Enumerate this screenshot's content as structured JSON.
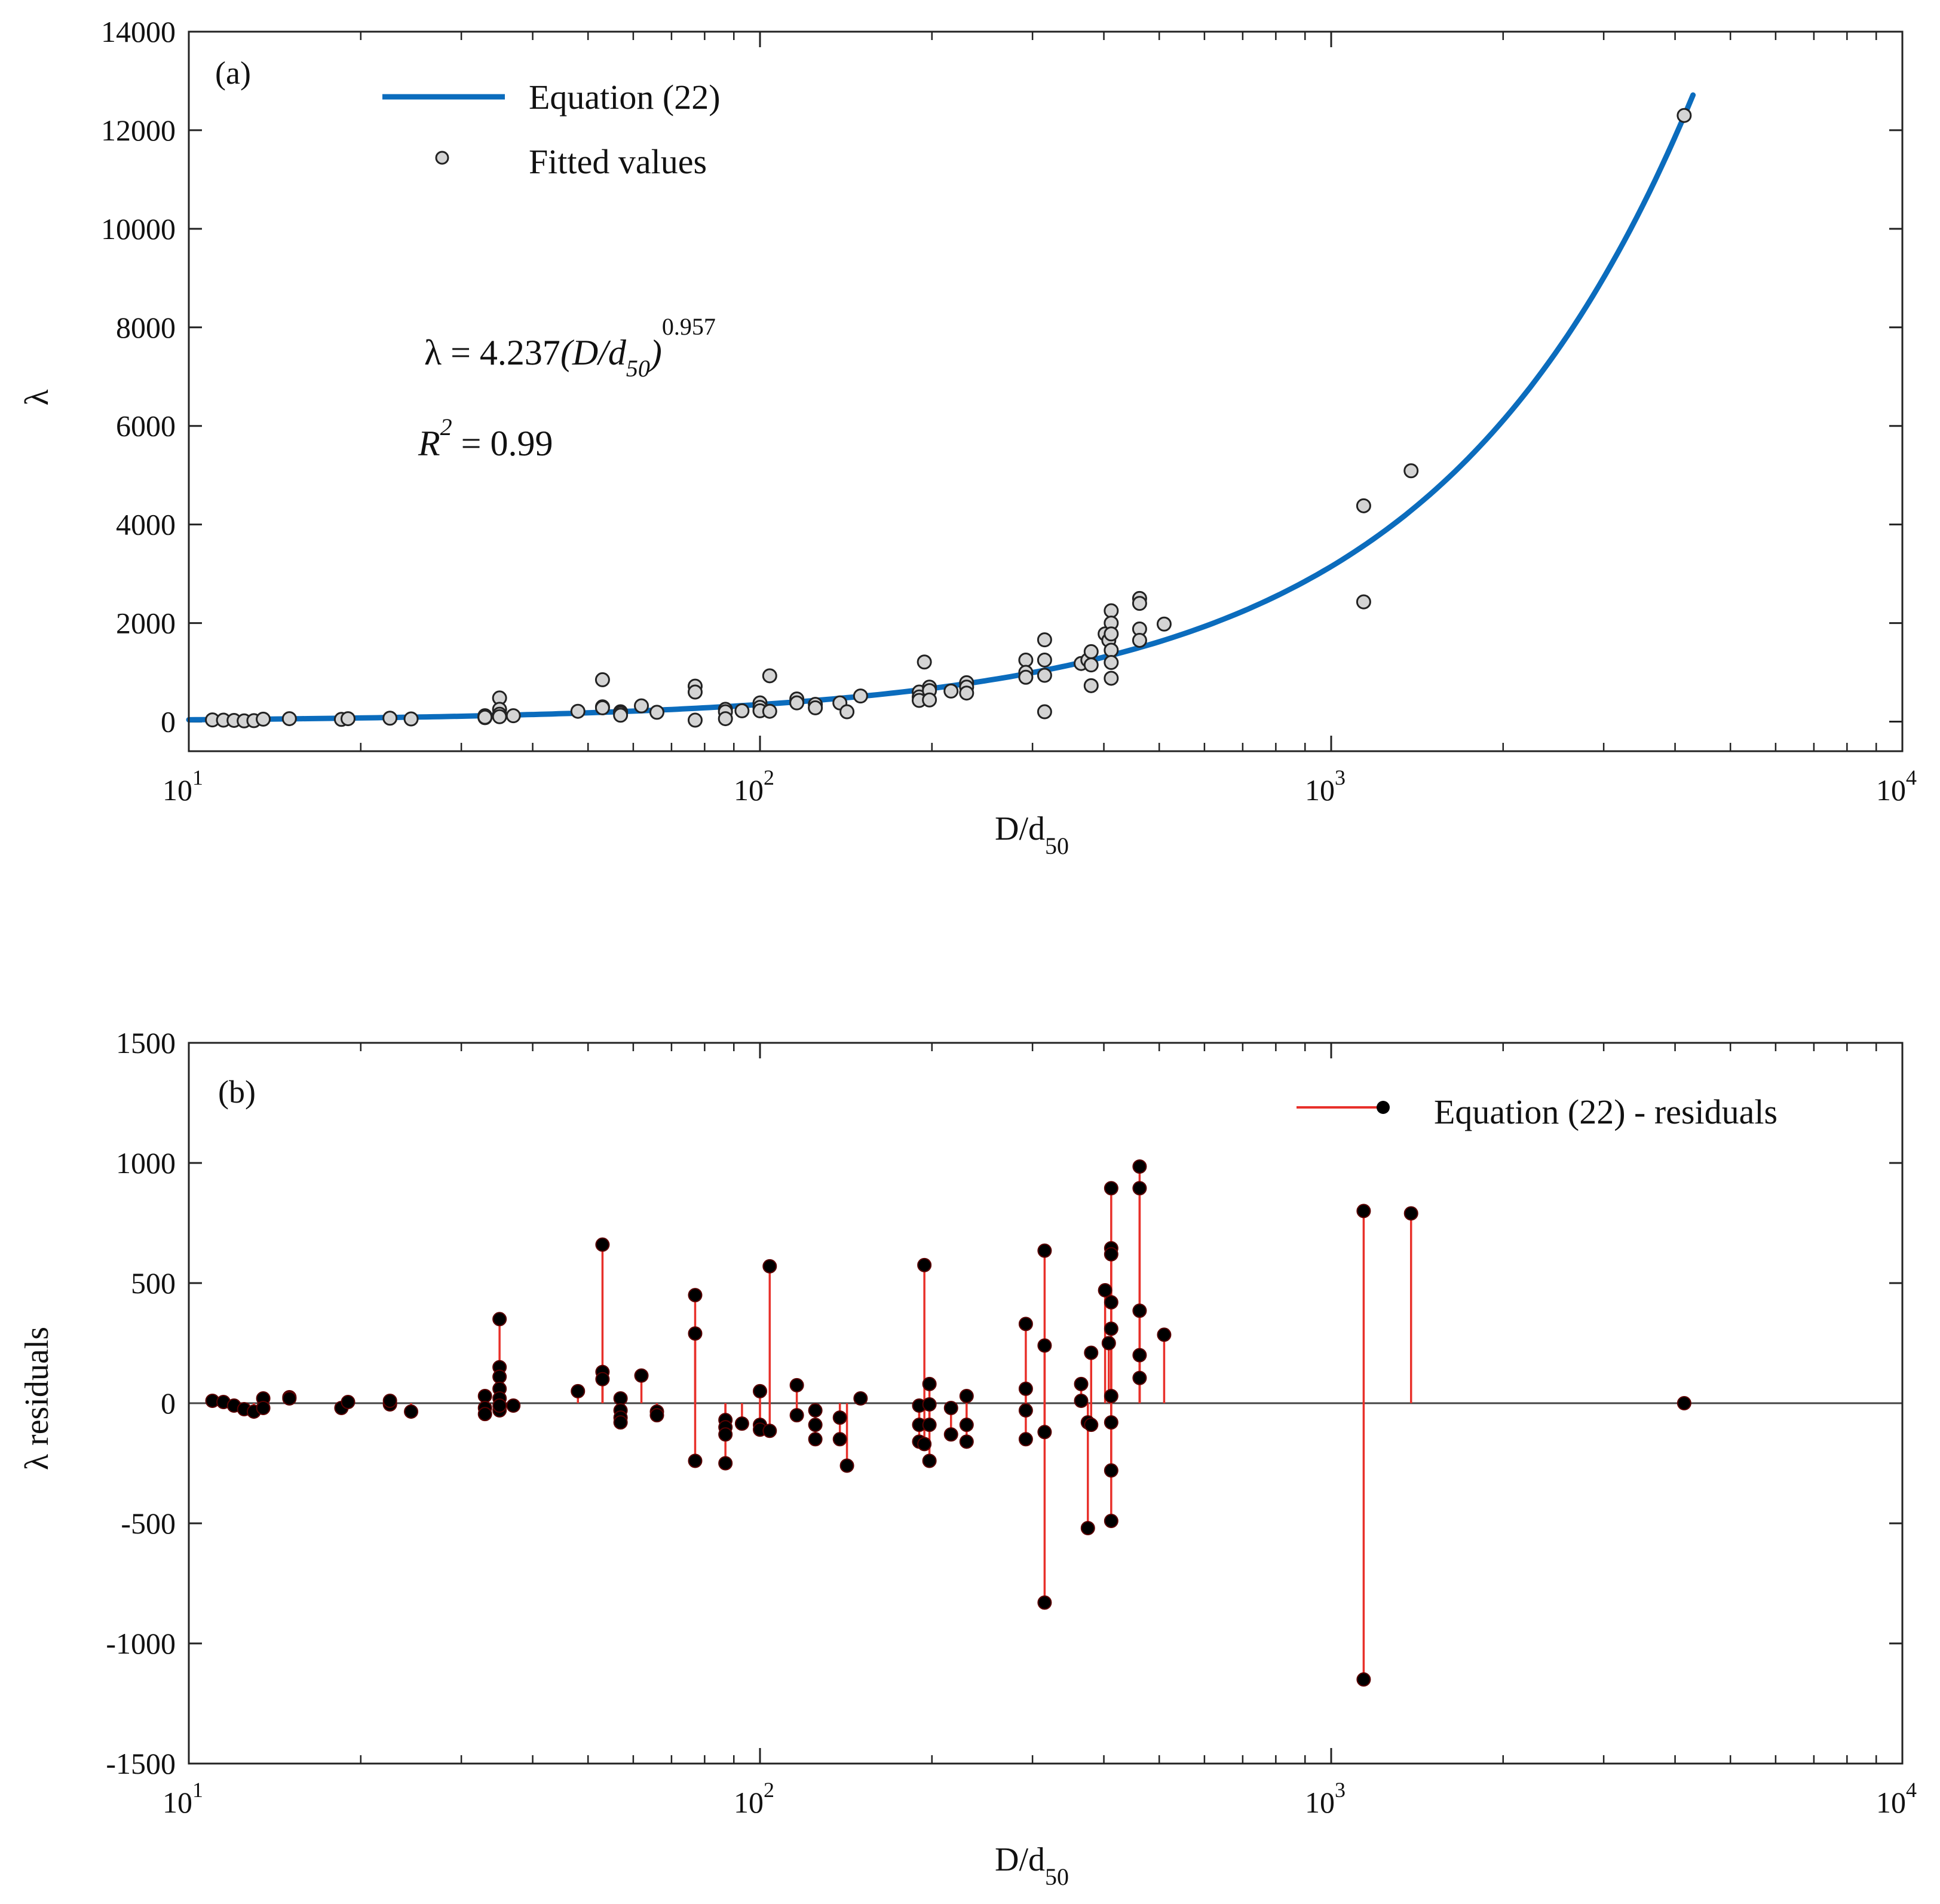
{
  "chart_data": [
    {
      "id": "a",
      "type": "scatter",
      "panel_label": "(a)",
      "x_scale": "log",
      "xlim": [
        10,
        10000
      ],
      "ylim": [
        -600,
        14000
      ],
      "yticks": [
        0,
        2000,
        4000,
        6000,
        8000,
        10000,
        12000,
        14000
      ],
      "ylabel": "λ",
      "xlabel": {
        "main": "D/d",
        "sub": "50"
      },
      "legend": {
        "line": "Equation (22)",
        "points": "Fitted values"
      },
      "annotation": {
        "eq_prefix": "λ = 4.237",
        "eq_var": "(D/d",
        "eq_sub": "50",
        "eq_close": ")",
        "eq_exp": "0.957",
        "r2_R": "R",
        "r2_sup": "2",
        "r2_val": " = 0.99"
      },
      "colors": {
        "line": "#0b6cbd",
        "points_fill": "#d4d4d4",
        "points_edge": "#222222"
      },
      "series": [
        {
          "name": "Equation (22)",
          "kind": "line",
          "coef": 4.237,
          "exp": 0.957,
          "x_range": [
            10,
            4300
          ]
        },
        {
          "name": "Fitted values",
          "kind": "points",
          "points": [
            [
              11,
              35
            ],
            [
              11.5,
              30
            ],
            [
              12,
              25
            ],
            [
              12.5,
              15
            ],
            [
              13,
              20
            ],
            [
              13.5,
              50
            ],
            [
              15,
              60
            ],
            [
              18.5,
              45
            ],
            [
              19,
              60
            ],
            [
              22.5,
              70
            ],
            [
              24.5,
              55
            ],
            [
              33,
              120
            ],
            [
              33,
              80
            ],
            [
              33,
              90
            ],
            [
              35,
              480
            ],
            [
              35,
              250
            ],
            [
              35,
              150
            ],
            [
              35,
              100
            ],
            [
              37,
              120
            ],
            [
              48,
              210
            ],
            [
              53,
              850
            ],
            [
              53,
              300
            ],
            [
              53,
              280
            ],
            [
              57,
              200
            ],
            [
              57,
              170
            ],
            [
              57,
              130
            ],
            [
              62,
              320
            ],
            [
              66,
              190
            ],
            [
              77,
              720
            ],
            [
              77,
              600
            ],
            [
              77,
              30
            ],
            [
              87,
              250
            ],
            [
              87,
              200
            ],
            [
              87,
              60
            ],
            [
              93,
              220
            ],
            [
              100,
              380
            ],
            [
              100,
              290
            ],
            [
              100,
              220
            ],
            [
              104,
              930
            ],
            [
              104,
              210
            ],
            [
              116,
              460
            ],
            [
              116,
              380
            ],
            [
              125,
              350
            ],
            [
              125,
              280
            ],
            [
              138,
              380
            ],
            [
              142,
              200
            ],
            [
              150,
              520
            ],
            [
              190,
              600
            ],
            [
              190,
              500
            ],
            [
              190,
              430
            ],
            [
              194,
              1210
            ],
            [
              198,
              700
            ],
            [
              198,
              630
            ],
            [
              198,
              440
            ],
            [
              216,
              620
            ],
            [
              230,
              790
            ],
            [
              230,
              700
            ],
            [
              230,
              580
            ],
            [
              292,
              1250
            ],
            [
              292,
              1000
            ],
            [
              292,
              900
            ],
            [
              315,
              1660
            ],
            [
              315,
              1250
            ],
            [
              315,
              940
            ],
            [
              315,
              200
            ],
            [
              365,
              1180
            ],
            [
              375,
              1250
            ],
            [
              380,
              1420
            ],
            [
              380,
              1150
            ],
            [
              380,
              730
            ],
            [
              402,
              1780
            ],
            [
              408,
              1650
            ],
            [
              412,
              2250
            ],
            [
              412,
              2000
            ],
            [
              412,
              1780
            ],
            [
              412,
              1450
            ],
            [
              412,
              1200
            ],
            [
              412,
              880
            ],
            [
              462,
              2500
            ],
            [
              462,
              2400
            ],
            [
              462,
              1880
            ],
            [
              462,
              1650
            ],
            [
              510,
              1980
            ],
            [
              1140,
              4380
            ],
            [
              1140,
              2430
            ],
            [
              1380,
              5090
            ],
            [
              4150,
              12300
            ]
          ]
        }
      ],
      "xticks": [
        {
          "value": 10,
          "base": "10",
          "exp": "1"
        },
        {
          "value": 100,
          "base": "10",
          "exp": "2"
        },
        {
          "value": 1000,
          "base": "10",
          "exp": "3"
        },
        {
          "value": 10000,
          "base": "10",
          "exp": "4"
        }
      ]
    },
    {
      "id": "b",
      "type": "stem",
      "panel_label": "(b)",
      "x_scale": "log",
      "xlim": [
        10,
        10000
      ],
      "ylim": [
        -1500,
        1500
      ],
      "yticks": [
        -1500,
        -1000,
        -500,
        0,
        500,
        1000,
        1500
      ],
      "ylabel": "λ residuals",
      "xlabel": {
        "main": "D/d",
        "sub": "50"
      },
      "legend": {
        "series": "Equation (22) - residuals"
      },
      "colors": {
        "stem": "#e8302a",
        "marker": "#000000",
        "baseline": "#444444"
      },
      "series": [
        {
          "name": "Equation (22) - residuals",
          "points": [
            [
              11,
              10
            ],
            [
              11.5,
              5
            ],
            [
              12,
              -10
            ],
            [
              12.5,
              -25
            ],
            [
              13,
              -35
            ],
            [
              13.5,
              20
            ],
            [
              13.5,
              -20
            ],
            [
              15,
              25
            ],
            [
              15,
              20
            ],
            [
              18.5,
              -20
            ],
            [
              19,
              5
            ],
            [
              22.5,
              -5
            ],
            [
              22.5,
              10
            ],
            [
              24.5,
              -35
            ],
            [
              33,
              30
            ],
            [
              33,
              -20
            ],
            [
              33,
              -45
            ],
            [
              35,
              350
            ],
            [
              35,
              150
            ],
            [
              35,
              110
            ],
            [
              35,
              60
            ],
            [
              35,
              20
            ],
            [
              35,
              -30
            ],
            [
              35,
              -10
            ],
            [
              37,
              -10
            ],
            [
              48,
              50
            ],
            [
              53,
              660
            ],
            [
              53,
              130
            ],
            [
              53,
              100
            ],
            [
              57,
              20
            ],
            [
              57,
              -30
            ],
            [
              57,
              -60
            ],
            [
              57,
              -80
            ],
            [
              62,
              115
            ],
            [
              66,
              -35
            ],
            [
              66,
              -50
            ],
            [
              77,
              450
            ],
            [
              77,
              290
            ],
            [
              77,
              -240
            ],
            [
              87,
              -70
            ],
            [
              87,
              -100
            ],
            [
              87,
              -130
            ],
            [
              87,
              -250
            ],
            [
              93,
              -85
            ],
            [
              100,
              50
            ],
            [
              100,
              -90
            ],
            [
              100,
              -110
            ],
            [
              104,
              570
            ],
            [
              104,
              -115
            ],
            [
              116,
              75
            ],
            [
              116,
              -50
            ],
            [
              125,
              -30
            ],
            [
              125,
              -90
            ],
            [
              125,
              -150
            ],
            [
              138,
              -60
            ],
            [
              138,
              -150
            ],
            [
              142,
              -260
            ],
            [
              150,
              20
            ],
            [
              190,
              -10
            ],
            [
              190,
              -90
            ],
            [
              190,
              -160
            ],
            [
              194,
              575
            ],
            [
              194,
              -170
            ],
            [
              198,
              80
            ],
            [
              198,
              -5
            ],
            [
              198,
              -90
            ],
            [
              198,
              -240
            ],
            [
              216,
              -20
            ],
            [
              216,
              -130
            ],
            [
              230,
              30
            ],
            [
              230,
              -90
            ],
            [
              230,
              -160
            ],
            [
              292,
              330
            ],
            [
              292,
              60
            ],
            [
              292,
              -30
            ],
            [
              292,
              -150
            ],
            [
              315,
              635
            ],
            [
              315,
              240
            ],
            [
              315,
              -120
            ],
            [
              315,
              -830
            ],
            [
              365,
              80
            ],
            [
              365,
              10
            ],
            [
              375,
              -80
            ],
            [
              375,
              -520
            ],
            [
              380,
              210
            ],
            [
              380,
              -90
            ],
            [
              402,
              470
            ],
            [
              408,
              250
            ],
            [
              412,
              895
            ],
            [
              412,
              645
            ],
            [
              412,
              620
            ],
            [
              412,
              420
            ],
            [
              412,
              310
            ],
            [
              412,
              30
            ],
            [
              412,
              -80
            ],
            [
              412,
              -280
            ],
            [
              412,
              -490
            ],
            [
              462,
              985
            ],
            [
              462,
              895
            ],
            [
              462,
              385
            ],
            [
              462,
              200
            ],
            [
              462,
              105
            ],
            [
              510,
              285
            ],
            [
              1140,
              800
            ],
            [
              1140,
              -1150
            ],
            [
              1380,
              790
            ],
            [
              4150,
              0
            ]
          ]
        }
      ],
      "xticks": [
        {
          "value": 10,
          "base": "10",
          "exp": "1"
        },
        {
          "value": 100,
          "base": "10",
          "exp": "2"
        },
        {
          "value": 1000,
          "base": "10",
          "exp": "3"
        },
        {
          "value": 10000,
          "base": "10",
          "exp": "4"
        }
      ]
    }
  ]
}
